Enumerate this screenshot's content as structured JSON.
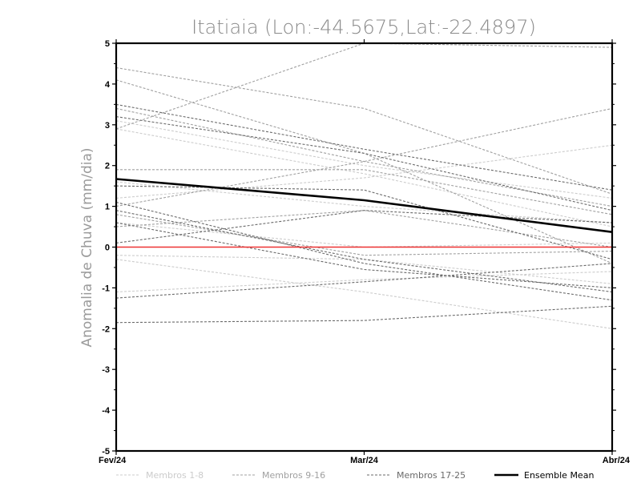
{
  "chart_data": {
    "type": "line",
    "title": "Itatiaia (Lon:-44.5675,Lat:-22.4897)",
    "xlabel": "",
    "ylabel": "Anomalia de Chuva (mm/dia)",
    "categories": [
      "Fev/24",
      "Mar/24",
      "Abr/24"
    ],
    "ylim": [
      -5,
      5
    ],
    "yticks": [
      "5",
      "4",
      "3",
      "2",
      "1",
      "0",
      "-1",
      "-2",
      "-3",
      "-4",
      "-5"
    ],
    "zero_line_color": "#ee3333",
    "groups": [
      {
        "name": "Membros 1-8",
        "color": "#cccccc",
        "series": [
          [
            3.1,
            2.0,
            1.2
          ],
          [
            2.9,
            1.8,
            0.5
          ],
          [
            1.2,
            1.7,
            2.5
          ],
          [
            1.6,
            1.0,
            0.6
          ],
          [
            0.6,
            0.0,
            0.1
          ],
          [
            -0.2,
            -0.3,
            -0.9
          ],
          [
            -1.1,
            -0.8,
            -0.6
          ],
          [
            -0.3,
            -1.1,
            -2.0
          ]
        ]
      },
      {
        "name": "Membros 9-16",
        "color": "#a0a0a0",
        "series": [
          [
            4.4,
            3.4,
            1.3
          ],
          [
            4.1,
            2.3,
            -0.4
          ],
          [
            2.9,
            5.0,
            4.9
          ],
          [
            3.4,
            2.1,
            1.0
          ],
          [
            1.9,
            1.9,
            0.8
          ],
          [
            1.0,
            2.1,
            3.4
          ],
          [
            0.5,
            0.9,
            0.0
          ],
          [
            0.8,
            -0.2,
            -0.1
          ]
        ]
      },
      {
        "name": "Membros 17-25",
        "color": "#6a6a6a",
        "series": [
          [
            3.5,
            2.4,
            1.4
          ],
          [
            3.2,
            2.3,
            0.9
          ],
          [
            1.5,
            1.4,
            -0.3
          ],
          [
            0.9,
            -0.3,
            -1.1
          ],
          [
            0.1,
            0.9,
            0.6
          ],
          [
            1.1,
            -0.4,
            -1.3
          ],
          [
            -1.25,
            -0.85,
            -0.4
          ],
          [
            -1.85,
            -1.8,
            -1.45
          ],
          [
            0.6,
            -0.55,
            -1.0
          ]
        ]
      }
    ],
    "ensemble_mean": {
      "name": "Ensemble Mean",
      "color": "#000000",
      "values": [
        1.67,
        1.15,
        0.37
      ]
    }
  }
}
